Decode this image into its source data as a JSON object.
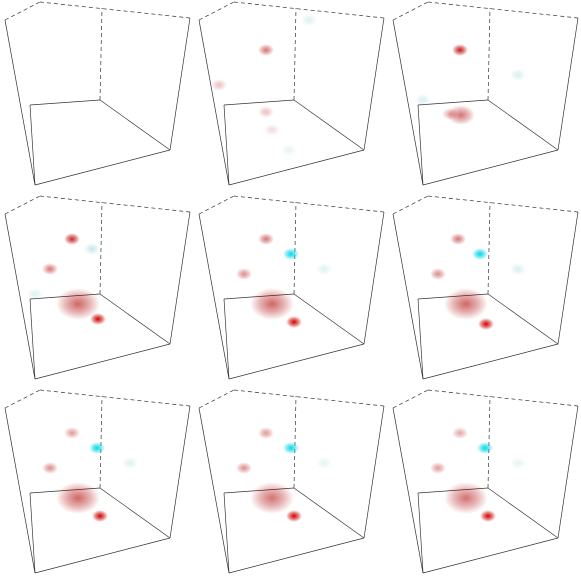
{
  "figure": {
    "description_visible_text": "",
    "panels": [
      {
        "blobs": []
      },
      {
        "blobs": [
          {
            "id": "b1",
            "color": "#b00000",
            "strength": 0.55,
            "size": "small",
            "region": "upper-mid"
          },
          {
            "id": "b2",
            "color": "#b00000",
            "strength": 0.25,
            "size": "small",
            "region": "mid-left"
          },
          {
            "id": "b3",
            "color": "#b00000",
            "strength": 0.25,
            "size": "small",
            "region": "mid"
          },
          {
            "id": "b4",
            "color": "#9fd4d4",
            "strength": 0.35,
            "size": "small",
            "region": "top-right"
          },
          {
            "id": "b5",
            "color": "#b00000",
            "strength": 0.15,
            "size": "small",
            "region": "lower-mid"
          },
          {
            "id": "b6",
            "color": "#9fd4d4",
            "strength": 0.25,
            "size": "small",
            "region": "lower-right"
          }
        ]
      },
      {
        "blobs": [
          {
            "id": "b1",
            "color": "#c00000",
            "strength": 0.9,
            "size": "small",
            "region": "upper-mid"
          },
          {
            "id": "b2",
            "color": "#b00000",
            "strength": 0.35,
            "size": "small",
            "region": "mid"
          },
          {
            "id": "b3",
            "color": "#8fd0d0",
            "strength": 0.35,
            "size": "small",
            "region": "right"
          },
          {
            "id": "b4",
            "color": "#b00000",
            "strength": 0.55,
            "size": "medium",
            "region": "lower-mid"
          },
          {
            "id": "b5",
            "color": "#8fd0d0",
            "strength": 0.35,
            "size": "small",
            "region": "left"
          }
        ]
      },
      {
        "blobs": [
          {
            "id": "b1",
            "color": "#c00000",
            "strength": 0.85,
            "size": "small",
            "region": "upper-left"
          },
          {
            "id": "b2",
            "color": "#7fc8c8",
            "strength": 0.45,
            "size": "small",
            "region": "upper-mid"
          },
          {
            "id": "b3",
            "color": "#c00000",
            "strength": 0.55,
            "size": "small",
            "region": "mid-left"
          },
          {
            "id": "b4",
            "color": "#b00000",
            "strength": 0.6,
            "size": "large",
            "region": "lower-mid"
          },
          {
            "id": "b5",
            "color": "#d00000",
            "strength": 1.0,
            "size": "small",
            "region": "lower-mid"
          },
          {
            "id": "b6",
            "color": "#8fd0d0",
            "strength": 0.3,
            "size": "small",
            "region": "left"
          }
        ]
      },
      {
        "blobs": [
          {
            "id": "b1",
            "color": "#b00000",
            "strength": 0.55,
            "size": "small",
            "region": "upper-left"
          },
          {
            "id": "b2",
            "color": "#00d8e8",
            "strength": 1.0,
            "size": "small",
            "region": "upper-mid"
          },
          {
            "id": "b3",
            "color": "#b00000",
            "strength": 0.45,
            "size": "small",
            "region": "mid-left"
          },
          {
            "id": "b4",
            "color": "#b00000",
            "strength": 0.6,
            "size": "large",
            "region": "lower-mid"
          },
          {
            "id": "b5",
            "color": "#d00000",
            "strength": 1.0,
            "size": "small",
            "region": "lower-mid"
          },
          {
            "id": "b6",
            "color": "#8fd0d0",
            "strength": 0.3,
            "size": "small",
            "region": "right"
          }
        ]
      },
      {
        "blobs": [
          {
            "id": "b1",
            "color": "#b00000",
            "strength": 0.55,
            "size": "small",
            "region": "upper-left"
          },
          {
            "id": "b2",
            "color": "#00d8e8",
            "strength": 1.0,
            "size": "small",
            "region": "upper-mid"
          },
          {
            "id": "b3",
            "color": "#b00000",
            "strength": 0.45,
            "size": "small",
            "region": "mid-left"
          },
          {
            "id": "b4",
            "color": "#b00000",
            "strength": 0.6,
            "size": "large",
            "region": "lower-mid"
          },
          {
            "id": "b5",
            "color": "#d00000",
            "strength": 1.0,
            "size": "small",
            "region": "lower-mid"
          },
          {
            "id": "b6",
            "color": "#8fd0d0",
            "strength": 0.35,
            "size": "small",
            "region": "right"
          }
        ]
      },
      {
        "blobs": [
          {
            "id": "b1",
            "color": "#b00000",
            "strength": 0.4,
            "size": "small",
            "region": "upper-left"
          },
          {
            "id": "b2",
            "color": "#00d8e8",
            "strength": 1.0,
            "size": "small",
            "region": "upper-mid"
          },
          {
            "id": "b3",
            "color": "#b00000",
            "strength": 0.45,
            "size": "small",
            "region": "mid-left"
          },
          {
            "id": "b4",
            "color": "#b00000",
            "strength": 0.6,
            "size": "large",
            "region": "lower-mid"
          },
          {
            "id": "b5",
            "color": "#d00000",
            "strength": 1.0,
            "size": "small",
            "region": "lower-mid"
          },
          {
            "id": "b6",
            "color": "#8fd0d0",
            "strength": 0.3,
            "size": "small",
            "region": "right"
          }
        ]
      },
      {
        "blobs": [
          {
            "id": "b1",
            "color": "#b00000",
            "strength": 0.4,
            "size": "small",
            "region": "upper-left"
          },
          {
            "id": "b2",
            "color": "#00d8e8",
            "strength": 1.0,
            "size": "small",
            "region": "upper-mid"
          },
          {
            "id": "b3",
            "color": "#b00000",
            "strength": 0.45,
            "size": "small",
            "region": "mid-left"
          },
          {
            "id": "b4",
            "color": "#b00000",
            "strength": 0.55,
            "size": "large",
            "region": "lower-mid"
          },
          {
            "id": "b5",
            "color": "#d00000",
            "strength": 1.0,
            "size": "small",
            "region": "lower-mid"
          },
          {
            "id": "b6",
            "color": "#8fd0d0",
            "strength": 0.25,
            "size": "small",
            "region": "right"
          }
        ]
      },
      {
        "blobs": [
          {
            "id": "b1",
            "color": "#b00000",
            "strength": 0.35,
            "size": "small",
            "region": "upper-left"
          },
          {
            "id": "b2",
            "color": "#00d8e8",
            "strength": 1.0,
            "size": "small",
            "region": "upper-mid"
          },
          {
            "id": "b3",
            "color": "#b00000",
            "strength": 0.4,
            "size": "small",
            "region": "mid-left"
          },
          {
            "id": "b4",
            "color": "#b00000",
            "strength": 0.55,
            "size": "large",
            "region": "lower-mid"
          },
          {
            "id": "b5",
            "color": "#d00000",
            "strength": 1.0,
            "size": "small",
            "region": "lower-mid"
          },
          {
            "id": "b6",
            "color": "#8fd0d0",
            "strength": 0.25,
            "size": "small",
            "region": "right"
          }
        ]
      }
    ]
  }
}
